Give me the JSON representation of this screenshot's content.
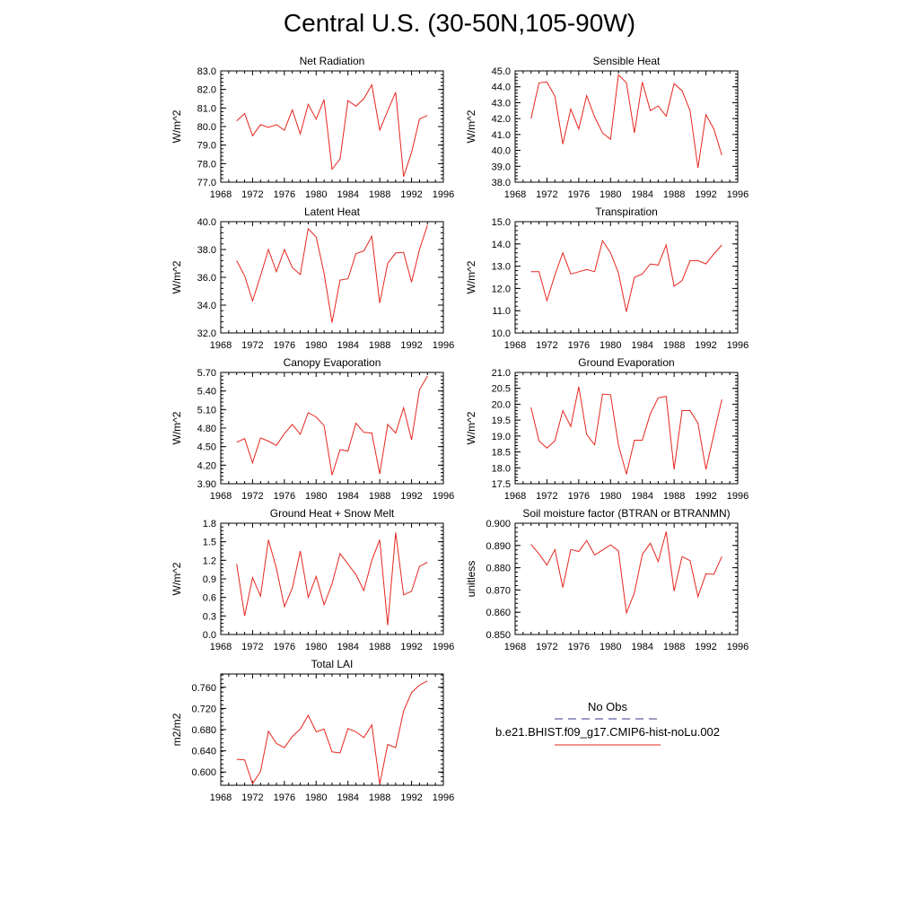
{
  "title": "Central U.S. (30-50N,105-90W)",
  "x_tick_labels": [
    "1968",
    "1972",
    "1976",
    "1980",
    "1984",
    "1988",
    "1992",
    "1996"
  ],
  "legend": {
    "obs_label": "No Obs",
    "model_label": "b.e21.BHIST.f09_g17.CMIP6-hist-noLu.002",
    "obs_color": "#3a3a8c",
    "model_color": "#e6261f"
  },
  "chart_data": [
    {
      "type": "line",
      "title": "Net Radiation",
      "ylabel": "W/m^2",
      "xlim": [
        1968,
        1996
      ],
      "ylim": [
        77.0,
        83.0
      ],
      "yticks": [
        77.0,
        78.0,
        79.0,
        80.0,
        81.0,
        82.0,
        83.0
      ],
      "ytick_labels": [
        "77.0",
        "78.0",
        "79.0",
        "80.0",
        "81.0",
        "82.0",
        "83.0"
      ],
      "series": [
        {
          "color": "#e6261f",
          "x": [
            1970,
            1971,
            1972,
            1973,
            1974,
            1975,
            1976,
            1977,
            1978,
            1979,
            1980,
            1981,
            1982,
            1983,
            1984,
            1985,
            1986,
            1987,
            1988,
            1989,
            1990,
            1991,
            1992,
            1993,
            1994
          ],
          "values": [
            80.3,
            80.7,
            79.5,
            80.1,
            79.95,
            80.1,
            79.8,
            80.9,
            79.6,
            81.2,
            80.4,
            81.45,
            77.7,
            78.25,
            81.4,
            81.1,
            81.5,
            82.25,
            79.8,
            80.85,
            81.85,
            77.3,
            78.6,
            80.4,
            80.6
          ]
        }
      ]
    },
    {
      "type": "line",
      "title": "Sensible Heat",
      "ylabel": "W/m^2",
      "xlim": [
        1968,
        1996
      ],
      "ylim": [
        38.0,
        45.0
      ],
      "yticks": [
        38.0,
        39.0,
        40.0,
        41.0,
        42.0,
        43.0,
        44.0,
        45.0
      ],
      "ytick_labels": [
        "38.0",
        "39.0",
        "40.0",
        "41.0",
        "42.0",
        "43.0",
        "44.0",
        "45.0"
      ],
      "series": [
        {
          "color": "#e6261f",
          "x": [
            1970,
            1971,
            1972,
            1973,
            1974,
            1975,
            1976,
            1977,
            1978,
            1979,
            1980,
            1981,
            1982,
            1983,
            1984,
            1985,
            1986,
            1987,
            1988,
            1989,
            1990,
            1991,
            1992,
            1993,
            1994
          ],
          "values": [
            42.0,
            44.25,
            44.3,
            43.4,
            40.4,
            42.6,
            41.35,
            43.45,
            42.1,
            41.1,
            40.7,
            44.75,
            44.25,
            41.1,
            44.3,
            42.5,
            42.8,
            42.15,
            44.2,
            43.75,
            42.5,
            38.9,
            42.25,
            41.35,
            39.7
          ]
        }
      ]
    },
    {
      "type": "line",
      "title": "Latent Heat",
      "ylabel": "W/m^2",
      "xlim": [
        1968,
        1996
      ],
      "ylim": [
        32.0,
        40.0
      ],
      "yticks": [
        32.0,
        34.0,
        36.0,
        38.0,
        40.0
      ],
      "ytick_labels": [
        "32.0",
        "34.0",
        "36.0",
        "38.0",
        "40.0"
      ],
      "series": [
        {
          "color": "#e6261f",
          "x": [
            1970,
            1971,
            1972,
            1973,
            1974,
            1975,
            1976,
            1977,
            1978,
            1979,
            1980,
            1981,
            1982,
            1983,
            1984,
            1985,
            1986,
            1987,
            1988,
            1989,
            1990,
            1991,
            1992,
            1993,
            1994
          ],
          "values": [
            37.2,
            36.1,
            34.3,
            36.1,
            38.0,
            36.4,
            38.0,
            36.7,
            36.2,
            39.5,
            38.9,
            36.3,
            32.75,
            35.8,
            35.9,
            37.7,
            37.9,
            38.95,
            34.15,
            37.0,
            37.75,
            37.8,
            35.65,
            38.0,
            39.75
          ]
        }
      ]
    },
    {
      "type": "line",
      "title": "Transpiration",
      "ylabel": "W/m^2",
      "xlim": [
        1968,
        1996
      ],
      "ylim": [
        10.0,
        15.0
      ],
      "yticks": [
        10.0,
        11.0,
        12.0,
        13.0,
        14.0,
        15.0
      ],
      "ytick_labels": [
        "10.0",
        "11.0",
        "12.0",
        "13.0",
        "14.0",
        "15.0"
      ],
      "series": [
        {
          "color": "#e6261f",
          "x": [
            1970,
            1971,
            1972,
            1973,
            1974,
            1975,
            1976,
            1977,
            1978,
            1979,
            1980,
            1981,
            1982,
            1983,
            1984,
            1985,
            1986,
            1987,
            1988,
            1989,
            1990,
            1991,
            1992,
            1993,
            1994
          ],
          "values": [
            12.75,
            12.75,
            11.45,
            12.6,
            13.6,
            12.65,
            12.75,
            12.85,
            12.75,
            14.15,
            13.6,
            12.7,
            10.95,
            12.5,
            12.65,
            13.1,
            13.05,
            13.95,
            12.1,
            12.35,
            13.25,
            13.25,
            13.1,
            13.55,
            13.95
          ]
        }
      ]
    },
    {
      "type": "line",
      "title": "Canopy Evaporation",
      "ylabel": "W/m^2",
      "xlim": [
        1968,
        1996
      ],
      "ylim": [
        3.9,
        5.7
      ],
      "yticks": [
        3.9,
        4.2,
        4.5,
        4.8,
        5.1,
        5.4,
        5.7
      ],
      "ytick_labels": [
        "3.90",
        "4.20",
        "4.50",
        "4.80",
        "5.10",
        "5.40",
        "5.70"
      ],
      "series": [
        {
          "color": "#e6261f",
          "x": [
            1970,
            1971,
            1972,
            1973,
            1974,
            1975,
            1976,
            1977,
            1978,
            1979,
            1980,
            1981,
            1982,
            1983,
            1984,
            1985,
            1986,
            1987,
            1988,
            1989,
            1990,
            1991,
            1992,
            1993,
            1994
          ],
          "values": [
            4.57,
            4.63,
            4.24,
            4.64,
            4.59,
            4.52,
            4.71,
            4.86,
            4.7,
            5.05,
            4.98,
            4.84,
            4.04,
            4.45,
            4.43,
            4.88,
            4.73,
            4.72,
            4.06,
            4.86,
            4.72,
            5.13,
            4.61,
            5.42,
            5.64
          ]
        }
      ]
    },
    {
      "type": "line",
      "title": "Ground Evaporation",
      "ylabel": "W/m^2",
      "xlim": [
        1968,
        1996
      ],
      "ylim": [
        17.5,
        21.0
      ],
      "yticks": [
        17.5,
        18.0,
        18.5,
        19.0,
        19.5,
        20.0,
        20.5,
        21.0
      ],
      "ytick_labels": [
        "17.5",
        "18.0",
        "18.5",
        "19.0",
        "19.5",
        "20.0",
        "20.5",
        "21.0"
      ],
      "series": [
        {
          "color": "#e6261f",
          "x": [
            1970,
            1971,
            1972,
            1973,
            1974,
            1975,
            1976,
            1977,
            1978,
            1979,
            1980,
            1981,
            1982,
            1983,
            1984,
            1985,
            1986,
            1987,
            1988,
            1989,
            1990,
            1991,
            1992,
            1993,
            1994
          ],
          "values": [
            19.9,
            18.85,
            18.62,
            18.85,
            19.8,
            19.3,
            20.55,
            19.05,
            18.72,
            20.32,
            20.3,
            18.72,
            17.8,
            18.87,
            18.87,
            19.7,
            20.2,
            20.25,
            17.95,
            19.8,
            19.8,
            19.4,
            17.95,
            19.05,
            20.15
          ]
        }
      ]
    },
    {
      "type": "line",
      "title": "Ground Heat + Snow Melt",
      "ylabel": "W/m^2",
      "xlim": [
        1968,
        1996
      ],
      "ylim": [
        0.0,
        1.8
      ],
      "yticks": [
        0.0,
        0.3,
        0.6,
        0.9,
        1.2,
        1.5,
        1.8
      ],
      "ytick_labels": [
        "0.0",
        "0.3",
        "0.6",
        "0.9",
        "1.2",
        "1.5",
        "1.8"
      ],
      "series": [
        {
          "color": "#e6261f",
          "x": [
            1970,
            1971,
            1972,
            1973,
            1974,
            1975,
            1976,
            1977,
            1978,
            1979,
            1980,
            1981,
            1982,
            1983,
            1984,
            1985,
            1986,
            1987,
            1988,
            1989,
            1990,
            1991,
            1992,
            1993,
            1994
          ],
          "values": [
            1.14,
            0.3,
            0.92,
            0.62,
            1.53,
            1.07,
            0.45,
            0.75,
            1.35,
            0.6,
            0.94,
            0.48,
            0.82,
            1.31,
            1.14,
            0.97,
            0.71,
            1.2,
            1.53,
            0.15,
            1.65,
            0.64,
            0.7,
            1.1,
            1.17
          ]
        }
      ]
    },
    {
      "type": "line",
      "title": "Soil moisture factor (BTRAN or BTRANMN)",
      "ylabel": "unitless",
      "xlim": [
        1968,
        1996
      ],
      "ylim": [
        0.85,
        0.9
      ],
      "yticks": [
        0.85,
        0.86,
        0.87,
        0.88,
        0.89,
        0.9
      ],
      "ytick_labels": [
        "0.850",
        "0.860",
        "0.870",
        "0.880",
        "0.890",
        "0.900"
      ],
      "series": [
        {
          "color": "#e6261f",
          "x": [
            1970,
            1971,
            1972,
            1973,
            1974,
            1975,
            1976,
            1977,
            1978,
            1979,
            1980,
            1981,
            1982,
            1983,
            1984,
            1985,
            1986,
            1987,
            1988,
            1989,
            1990,
            1991,
            1992,
            1993,
            1994
          ],
          "values": [
            0.8905,
            0.8862,
            0.8812,
            0.8882,
            0.8711,
            0.8882,
            0.8873,
            0.8922,
            0.8857,
            0.888,
            0.8903,
            0.8876,
            0.8597,
            0.8687,
            0.886,
            0.891,
            0.8828,
            0.8962,
            0.8695,
            0.885,
            0.8832,
            0.867,
            0.8773,
            0.877,
            0.885
          ]
        }
      ]
    },
    {
      "type": "line",
      "title": "Total LAI",
      "ylabel": "m2/m2",
      "xlim": [
        1968,
        1996
      ],
      "ylim": [
        0.575,
        0.785
      ],
      "yticks": [
        0.6,
        0.64,
        0.68,
        0.72,
        0.76
      ],
      "ytick_labels": [
        "0.600",
        "0.640",
        "0.680",
        "0.720",
        "0.760"
      ],
      "series": [
        {
          "color": "#e6261f",
          "x": [
            1970,
            1971,
            1972,
            1973,
            1974,
            1975,
            1976,
            1977,
            1978,
            1979,
            1980,
            1981,
            1982,
            1983,
            1984,
            1985,
            1986,
            1987,
            1988,
            1989,
            1990,
            1991,
            1992,
            1993,
            1994
          ],
          "values": [
            0.624,
            0.623,
            0.578,
            0.601,
            0.677,
            0.654,
            0.646,
            0.667,
            0.681,
            0.707,
            0.676,
            0.681,
            0.638,
            0.636,
            0.682,
            0.676,
            0.665,
            0.689,
            0.577,
            0.652,
            0.646,
            0.715,
            0.75,
            0.764,
            0.772
          ]
        }
      ]
    }
  ]
}
